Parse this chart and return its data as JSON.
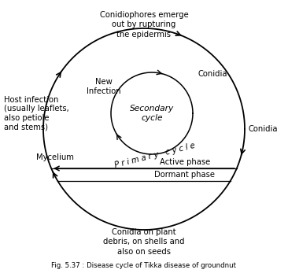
{
  "title": "Fig. 5.37 : Disease cycle of Tikka disease of groundnut",
  "bg_color": "#ffffff",
  "labels": {
    "top": "Conidiophores emerge\nout by rupturing\nthe epidermis",
    "conidia_top_right": "Conidia",
    "conidia_right": "Conidia",
    "bottom": "Conidia on plant\ndebris, on shells and\nalso on seeds",
    "new_infection": "New\nInfection",
    "host_infection": "Host infection\n(usually leaflets,\nalso petiole\nand stems)",
    "mycelium": "Mycelium",
    "secondary_cycle": "Secondary\ncycle",
    "primary_cycle": "P r i m a r y   c y c l e",
    "active_phase": "Active phase",
    "dormant_phase": "Dormant phase"
  },
  "text_color": "#000000",
  "line_color": "#000000"
}
